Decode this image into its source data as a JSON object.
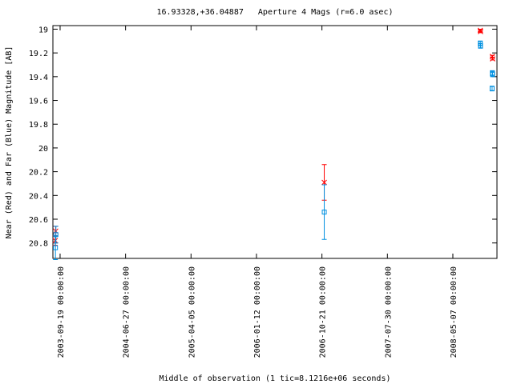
{
  "chart_data": {
    "type": "scatter",
    "title": "16.93328,+36.04887   Aperture 4 Mags (r=6.0 asec)",
    "x_label": "Middle of observation (1 tic=8.1216e+06 seconds)",
    "y_label": "Near (Red) and Far (Blue) Magnitude [AB]",
    "y_inverted": true,
    "xlim": [
      "2003-08-19 00:00:00",
      "2008-11-13 00:00:00"
    ],
    "xticks": [
      "2003-09-19 00:00:00",
      "2004-06-27 00:00:00",
      "2005-04-05 00:00:00",
      "2006-01-12 00:00:00",
      "2006-10-21 00:00:00",
      "2007-07-30 00:00:00",
      "2008-05-07 00:00:00"
    ],
    "ylim": [
      18.97,
      20.93
    ],
    "yticks": [
      19,
      19.2,
      19.4,
      19.6,
      19.8,
      20,
      20.2,
      20.4,
      20.6,
      20.8
    ],
    "series": [
      {
        "color": "#ff0000",
        "marker": "cross",
        "x": [
          "2003-08-29 00:00:00",
          "2003-08-31 00:00:00",
          "2006-10-31 00:00:00",
          "2008-09-02 00:00:00",
          "2008-09-03 00:00:00",
          "2008-10-24 00:00:00",
          "2008-10-25 00:00:00"
        ],
        "values": [
          20.78,
          20.7,
          20.29,
          19.01,
          19.02,
          19.23,
          19.25
        ],
        "errors": [
          0.04,
          0.04,
          0.15,
          0.01,
          0.01,
          0.01,
          0.01
        ]
      },
      {
        "color": "#0090e0",
        "marker": "square",
        "x": [
          "2003-08-30 00:00:00",
          "2003-09-01 00:00:00",
          "2006-10-31 00:00:00",
          "2008-09-02 00:00:00",
          "2008-09-03 00:00:00",
          "2008-10-24 00:00:00",
          "2008-10-25 00:00:00",
          "2008-10-23 00:00:00"
        ],
        "values": [
          20.84,
          20.73,
          20.54,
          19.12,
          19.14,
          19.37,
          19.38,
          19.5
        ],
        "errors": [
          0.1,
          0.07,
          0.23,
          0.02,
          0.02,
          0.02,
          0.02,
          0.02
        ]
      }
    ]
  }
}
